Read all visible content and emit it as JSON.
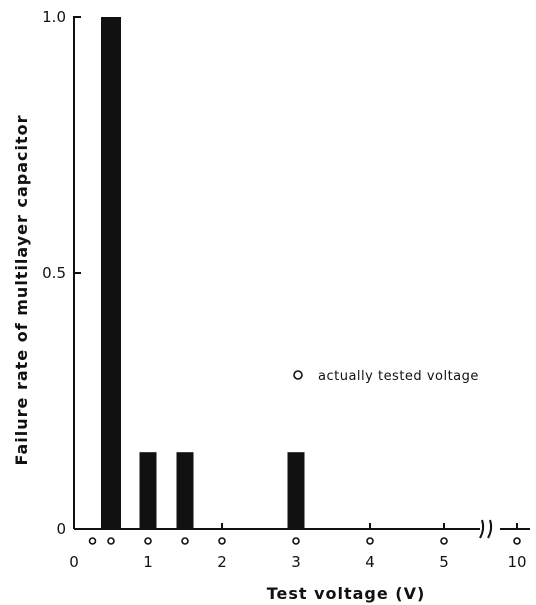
{
  "chart_data": {
    "type": "bar",
    "xlabel": "Test voltage (V)",
    "ylabel": "Failure rate of multilayer capacitor",
    "ylim": [
      0,
      1.0
    ],
    "x_ticks": [
      {
        "label": "0",
        "value": 0
      },
      {
        "label": "1",
        "value": 1
      },
      {
        "label": "2",
        "value": 2
      },
      {
        "label": "3",
        "value": 3
      },
      {
        "label": "4",
        "value": 4
      },
      {
        "label": "5",
        "value": 5
      },
      {
        "label": "10",
        "value": 10
      }
    ],
    "y_ticks": [
      {
        "label": "0",
        "value": 0
      },
      {
        "label": "0.5",
        "value": 0.5
      },
      {
        "label": "1.0",
        "value": 1.0
      }
    ],
    "axis_break": {
      "between": [
        5,
        10
      ]
    },
    "bars": [
      {
        "x": 0.5,
        "value": 1.0
      },
      {
        "x": 1.0,
        "value": 0.15
      },
      {
        "x": 1.5,
        "value": 0.15
      },
      {
        "x": 3.0,
        "value": 0.15
      }
    ],
    "tested_voltages": [
      0.25,
      0.5,
      1.0,
      1.5,
      2.0,
      3.0,
      4.0,
      5.0,
      10.0
    ],
    "legend": {
      "marker": "open-circle",
      "label": "actually tested voltage"
    }
  }
}
